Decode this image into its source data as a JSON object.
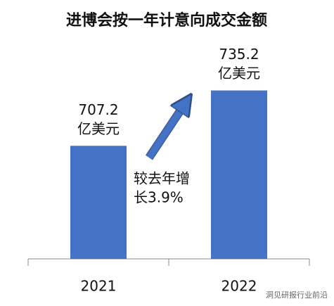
{
  "chart_data": {
    "type": "bar",
    "title": "进博会按一年计意向成交金额",
    "categories": [
      "2021",
      "2022"
    ],
    "values": [
      707.2,
      735.2
    ],
    "value_unit": "亿美元",
    "color": "#4472c4",
    "ylim": [
      650,
      750
    ],
    "annotation": [
      "较去年增",
      "长3.9%"
    ],
    "watermark": "洞见研报行业前沿"
  }
}
